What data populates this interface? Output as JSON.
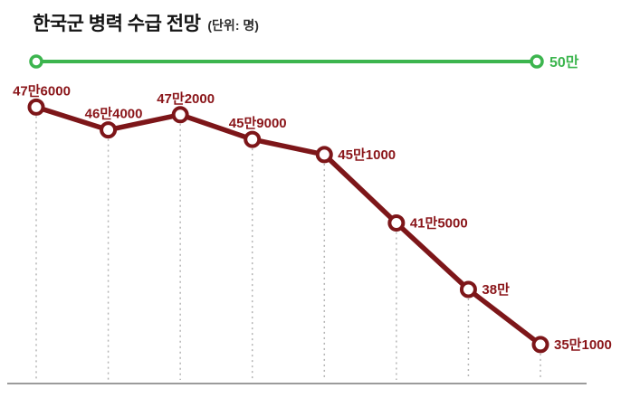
{
  "header": {
    "title": "한국군 병력 수급 전망",
    "unit": "(단위: 명)"
  },
  "chart_data": {
    "type": "line",
    "title": "한국군 병력 수급 전망",
    "unit_label": "(단위: 명)",
    "reference_line": {
      "label": "50만",
      "value": 500000,
      "color": "#3cb54e"
    },
    "series": [
      {
        "name": "병력 수급 전망",
        "color": "#7d1619",
        "points": [
          {
            "label": "47만6000",
            "value": 476000,
            "label_pos": "above"
          },
          {
            "label": "46만4000",
            "value": 464000,
            "label_pos": "above"
          },
          {
            "label": "47만2000",
            "value": 472000,
            "label_pos": "above"
          },
          {
            "label": "45만9000",
            "value": 459000,
            "label_pos": "above"
          },
          {
            "label": "45만1000",
            "value": 451000,
            "label_pos": "right"
          },
          {
            "label": "41만5000",
            "value": 415000,
            "label_pos": "right"
          },
          {
            "label": "38만",
            "value": 380000,
            "label_pos": "right"
          },
          {
            "label": "35만1000",
            "value": 351000,
            "label_pos": "right"
          }
        ]
      }
    ],
    "label_color": "#8a1519",
    "x_axis": {
      "labels_visible": false
    },
    "grid": "dotted-vertical-drop-lines",
    "ylim": [
      340000,
      510000
    ],
    "legend_position": "none"
  }
}
